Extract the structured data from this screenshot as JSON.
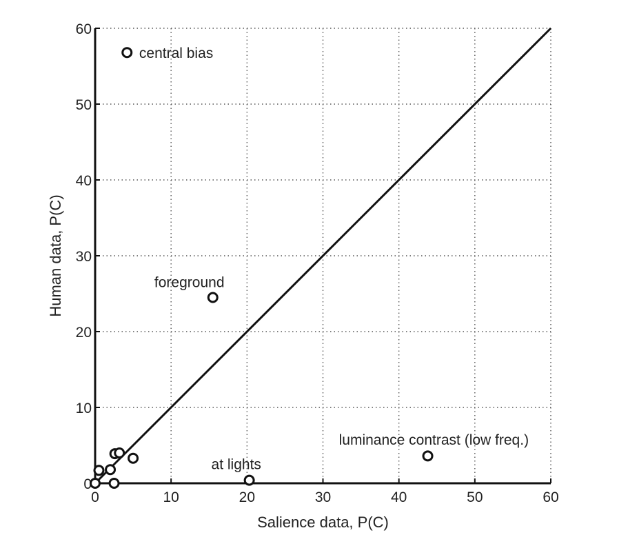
{
  "chart_data": {
    "type": "scatter",
    "title": "",
    "xlabel": "Salience data, P(C)",
    "ylabel": "Human data, P(C)",
    "xlim": [
      0,
      60
    ],
    "ylim": [
      0,
      60
    ],
    "xticks": [
      0,
      10,
      20,
      30,
      40,
      50,
      60
    ],
    "yticks": [
      0,
      10,
      20,
      30,
      40,
      50,
      60
    ],
    "grid": true,
    "reference_line": {
      "from": [
        0,
        0
      ],
      "to": [
        60,
        60
      ]
    },
    "points": [
      {
        "x": 4.2,
        "y": 56.8
      },
      {
        "x": 15.5,
        "y": 24.5
      },
      {
        "x": 43.8,
        "y": 3.6
      },
      {
        "x": 20.3,
        "y": 0.4
      },
      {
        "x": 0.0,
        "y": 0.0
      },
      {
        "x": 0.5,
        "y": 1.7
      },
      {
        "x": 2.0,
        "y": 1.8
      },
      {
        "x": 2.5,
        "y": 0.0
      },
      {
        "x": 2.6,
        "y": 3.9
      },
      {
        "x": 3.2,
        "y": 4.0
      },
      {
        "x": 5.0,
        "y": 3.3
      }
    ],
    "annotations": [
      {
        "text": "central bias",
        "x": 5.8,
        "y": 56.8
      },
      {
        "text": "foreground",
        "x": 7.8,
        "y": 26.6
      },
      {
        "text": "luminance contrast (low freq.)",
        "x": 32.1,
        "y": 5.8
      },
      {
        "text": "at lights",
        "x": 15.3,
        "y": 2.6
      }
    ]
  }
}
